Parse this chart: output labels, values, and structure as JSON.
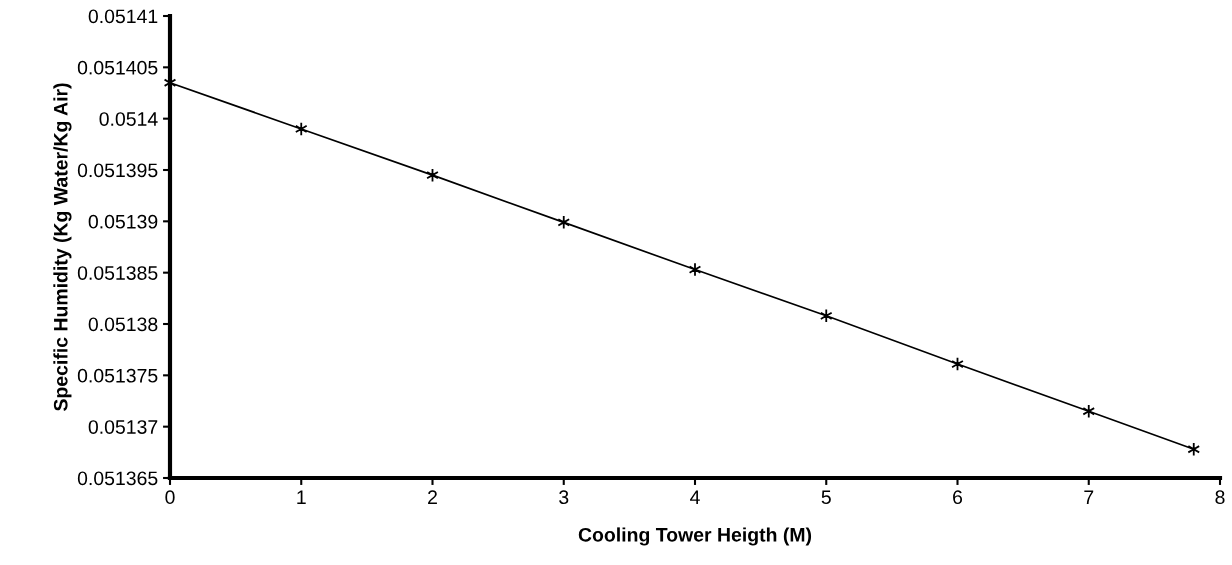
{
  "chart_data": {
    "type": "line",
    "xlabel": "Cooling Tower Heigth (M)",
    "ylabel": "Specific Humidity (Kg Water/Kg Air)",
    "x": [
      0,
      1,
      2,
      3,
      4,
      5,
      6,
      7,
      7.8
    ],
    "series": [
      {
        "color": "#000000",
        "values": [
          0.0514035,
          0.051399,
          0.0513945,
          0.0513899,
          0.0513853,
          0.0513808,
          0.0513761,
          0.0513715,
          0.0513678
        ]
      }
    ],
    "xlim": [
      0,
      8
    ],
    "xticks": [
      0,
      1,
      2,
      3,
      4,
      5,
      6,
      7,
      8
    ],
    "ylim": [
      0.051365,
      0.05141
    ],
    "yticks": [
      0.051365,
      0.05137,
      0.051375,
      0.05138,
      0.051385,
      0.05139,
      0.051395,
      0.0514,
      0.051405,
      0.05141
    ],
    "grid": false,
    "legend": false,
    "marker": "cross",
    "line_style": "solid"
  }
}
